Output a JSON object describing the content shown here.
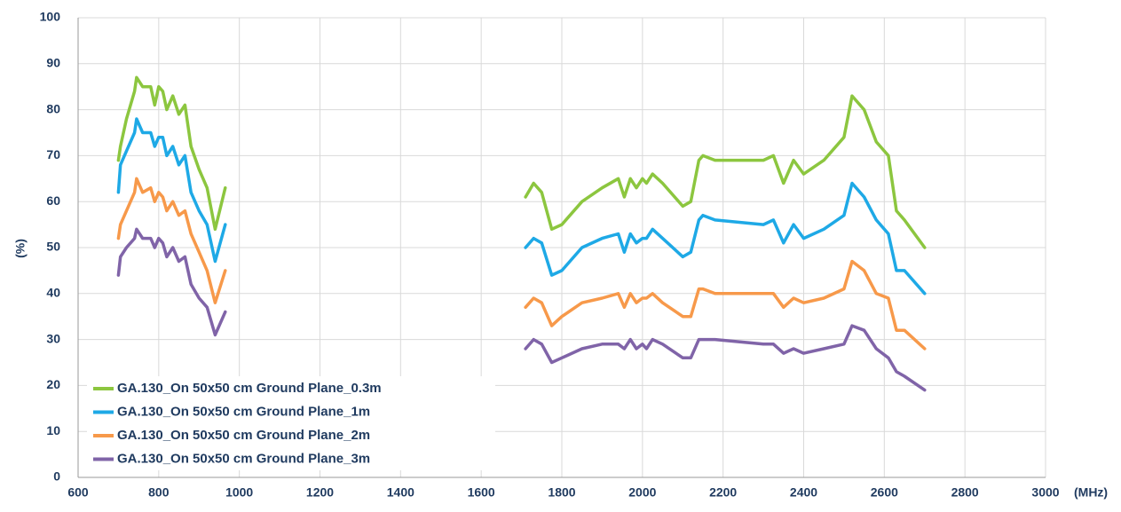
{
  "chart_data": {
    "type": "line",
    "y_label": "(%)",
    "x_label": "(MHz)",
    "x": [
      700,
      705,
      720,
      740,
      745,
      760,
      780,
      790,
      800,
      810,
      820,
      835,
      850,
      865,
      880,
      900,
      920,
      940,
      965,
      1340,
      1710,
      1730,
      1750,
      1775,
      1800,
      1850,
      1900,
      1940,
      1955,
      1970,
      1985,
      2000,
      2010,
      2025,
      2050,
      2100,
      2120,
      2140,
      2150,
      2180,
      2300,
      2325,
      2350,
      2375,
      2400,
      2450,
      2500,
      2520,
      2550,
      2580,
      2610,
      2630,
      2650,
      2700
    ],
    "series": [
      {
        "name": "GA.130_On 50x50 cm Ground Plane_0.3m",
        "color": "#8cc63f",
        "values": [
          69,
          72,
          78,
          84,
          87,
          85,
          85,
          81,
          85,
          84,
          80,
          83,
          79,
          81,
          72,
          67,
          63,
          54,
          63,
          null,
          61,
          64,
          62,
          54,
          55,
          60,
          63,
          65,
          61,
          65,
          63,
          65,
          64,
          66,
          64,
          59,
          60,
          69,
          70,
          69,
          69,
          70,
          64,
          69,
          66,
          69,
          74,
          83,
          80,
          73,
          70,
          58,
          56,
          50
        ]
      },
      {
        "name": "GA.130_On 50x50 cm Ground Plane_1m",
        "color": "#1ea9e6",
        "values": [
          62,
          68,
          71,
          75,
          78,
          75,
          75,
          72,
          74,
          74,
          70,
          72,
          68,
          70,
          62,
          58,
          55,
          47,
          55,
          null,
          50,
          52,
          51,
          44,
          45,
          50,
          52,
          53,
          49,
          53,
          51,
          52,
          52,
          54,
          52,
          48,
          49,
          56,
          57,
          56,
          55,
          56,
          51,
          55,
          52,
          54,
          57,
          64,
          61,
          56,
          53,
          45,
          45,
          40
        ]
      },
      {
        "name": "GA.130_On 50x50 cm Ground Plane_2m",
        "color": "#f7994a",
        "values": [
          52,
          55,
          58,
          62,
          65,
          62,
          63,
          60,
          62,
          61,
          58,
          60,
          57,
          58,
          53,
          49,
          45,
          38,
          45,
          null,
          37,
          39,
          38,
          33,
          35,
          38,
          39,
          40,
          37,
          40,
          38,
          39,
          39,
          40,
          38,
          35,
          35,
          41,
          41,
          40,
          40,
          40,
          37,
          39,
          38,
          39,
          41,
          47,
          45,
          40,
          39,
          32,
          32,
          28
        ]
      },
      {
        "name": "GA.130_On 50x50 cm Ground Plane_3m",
        "color": "#8064a8",
        "values": [
          44,
          48,
          50,
          52,
          54,
          52,
          52,
          50,
          52,
          51,
          48,
          50,
          47,
          48,
          42,
          39,
          37,
          31,
          36,
          null,
          28,
          30,
          29,
          25,
          26,
          28,
          29,
          29,
          28,
          30,
          28,
          29,
          28,
          30,
          29,
          26,
          26,
          30,
          30,
          30,
          29,
          29,
          27,
          28,
          27,
          28,
          29,
          33,
          32,
          28,
          26,
          23,
          22,
          19
        ]
      }
    ],
    "xlim": [
      600,
      3000
    ],
    "xticks": [
      600,
      800,
      1000,
      1200,
      1400,
      1600,
      1800,
      2000,
      2200,
      2400,
      2600,
      2800,
      3000
    ],
    "ylim": [
      0,
      100
    ],
    "yticks": [
      0,
      10,
      20,
      30,
      40,
      50,
      60,
      70,
      80,
      90,
      100
    ],
    "grid": true,
    "legend": "lower left"
  }
}
